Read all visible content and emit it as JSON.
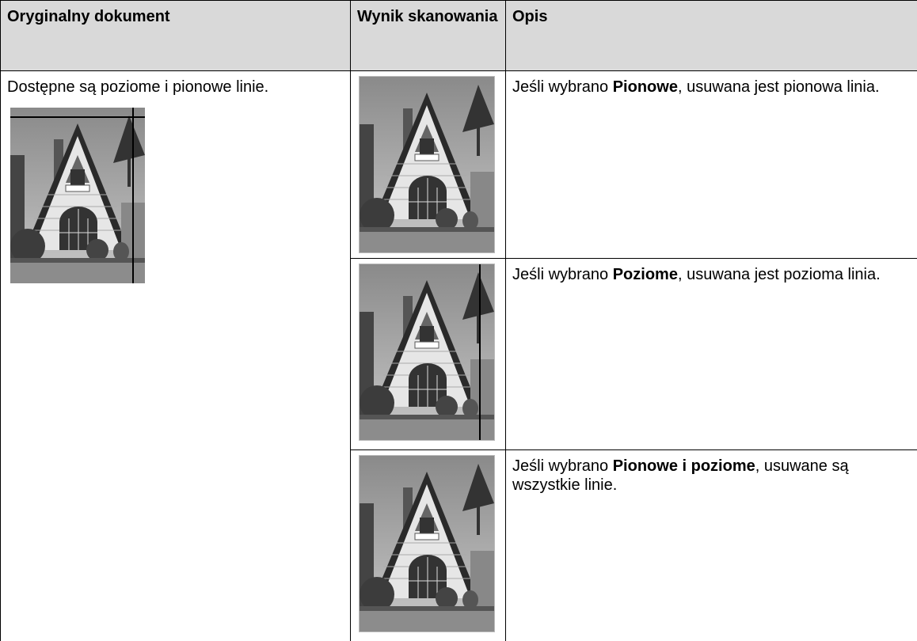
{
  "table": {
    "headers": [
      "Oryginalny dokument",
      "Wynik skanowania",
      "Opis"
    ],
    "rows": [
      {
        "original": "Dostępne są poziome i pionowe linie.",
        "description": {
          "before": "Jeśli wybrano ",
          "option": "Pionowe",
          "after": ", usuwana jest pionowa linia."
        }
      },
      {
        "description": {
          "before": "Jeśli wybrano ",
          "option": "Poziome",
          "after": ", usuwana jest pozioma linia."
        }
      },
      {
        "description": {
          "before": "Jeśli wybrano ",
          "option": "Pionowe i poziome",
          "after": ", usuwane są wszystkie linie."
        }
      }
    ]
  }
}
